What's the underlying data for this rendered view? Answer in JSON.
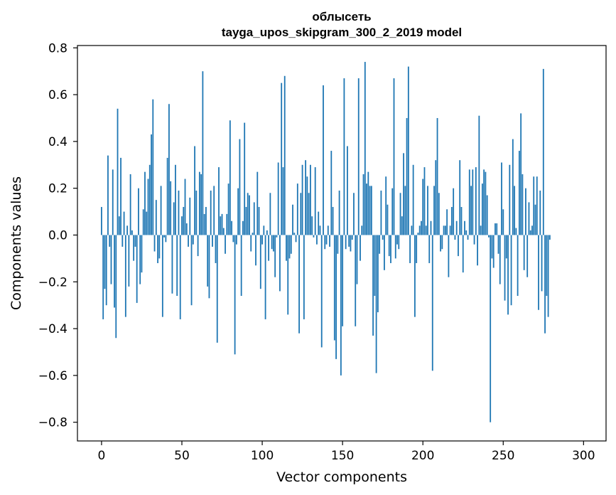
{
  "chart_data": {
    "type": "bar",
    "title": "облысеть",
    "subtitle": "tayga_upos_skipgram_300_2_2019 model",
    "xlabel": "Vector components",
    "ylabel": "Components values",
    "xlim": [
      -15,
      314
    ],
    "ylim": [
      -0.88,
      0.81
    ],
    "xticks": [
      0,
      50,
      100,
      150,
      200,
      250,
      300
    ],
    "yticks": [
      -0.8,
      -0.6,
      -0.4,
      -0.2,
      0.0,
      0.2,
      0.4,
      0.6,
      0.8
    ],
    "xtick_labels": [
      "0",
      "50",
      "100",
      "150",
      "200",
      "250",
      "300"
    ],
    "ytick_labels": [
      "−0.8",
      "−0.6",
      "−0.4",
      "−0.2",
      "0.0",
      "0.2",
      "0.4",
      "0.6",
      "0.8"
    ],
    "bar_color": "#1f77b4",
    "grid": false,
    "values": [
      0.12,
      -0.36,
      -0.23,
      -0.3,
      0.34,
      -0.05,
      -0.21,
      0.28,
      -0.31,
      -0.44,
      0.54,
      0.08,
      0.33,
      -0.05,
      0.1,
      -0.35,
      0.04,
      -0.22,
      0.26,
      0.02,
      -0.11,
      -0.05,
      -0.29,
      0.2,
      -0.21,
      -0.16,
      0.11,
      0.27,
      0.1,
      0.24,
      0.3,
      0.43,
      0.58,
      -0.07,
      0.15,
      -0.12,
      -0.1,
      0.21,
      -0.35,
      -0.01,
      -0.03,
      0.33,
      0.56,
      0.23,
      -0.25,
      0.14,
      0.3,
      -0.26,
      0.19,
      -0.36,
      0.08,
      0.12,
      0.24,
      0.05,
      -0.05,
      0.16,
      -0.3,
      -0.04,
      0.38,
      0.19,
      -0.09,
      0.27,
      0.26,
      0.7,
      0.09,
      0.12,
      -0.22,
      -0.27,
      0.19,
      -0.05,
      0.21,
      -0.12,
      -0.46,
      0.29,
      0.08,
      0.09,
      0.03,
      -0.08,
      0.09,
      0.22,
      0.49,
      0.06,
      -0.03,
      -0.51,
      -0.04,
      0.2,
      0.41,
      -0.26,
      0.06,
      0.48,
      0.12,
      0.18,
      0.17,
      -0.07,
      0.01,
      0.14,
      -0.13,
      0.27,
      0.12,
      -0.23,
      -0.04,
      0.04,
      -0.36,
      0.02,
      -0.11,
      0.18,
      -0.06,
      -0.07,
      -0.18,
      -0.01,
      0.31,
      -0.24,
      0.65,
      0.29,
      0.68,
      -0.11,
      -0.34,
      -0.1,
      -0.08,
      0.13,
      0.01,
      -0.03,
      0.22,
      -0.42,
      0.18,
      0.3,
      -0.36,
      0.32,
      0.25,
      0.18,
      0.3,
      0.08,
      -0.01,
      0.29,
      -0.04,
      0.1,
      0.04,
      -0.48,
      0.64,
      -0.06,
      -0.04,
      0.04,
      -0.05,
      0.36,
      0.12,
      -0.45,
      -0.53,
      -0.08,
      0.19,
      -0.6,
      -0.39,
      0.67,
      -0.06,
      0.38,
      -0.05,
      -0.07,
      -0.02,
      0.18,
      -0.39,
      -0.21,
      0.67,
      -0.11,
      0.04,
      0.26,
      0.74,
      0.22,
      0.27,
      0.21,
      0.21,
      -0.43,
      -0.26,
      -0.59,
      -0.33,
      -0.08,
      0.19,
      -0.02,
      -0.15,
      0.25,
      0.13,
      -0.09,
      -0.12,
      0.2,
      0.67,
      -0.1,
      -0.04,
      -0.06,
      0.18,
      0.08,
      0.35,
      0.21,
      0.5,
      0.72,
      -0.12,
      0.04,
      0.3,
      -0.35,
      -0.12,
      0.01,
      0.04,
      0.06,
      0.24,
      0.29,
      0.04,
      0.21,
      -0.12,
      0.06,
      -0.58,
      0.21,
      0.32,
      0.5,
      0.18,
      -0.07,
      -0.06,
      0.04,
      0.04,
      0.11,
      -0.18,
      0.04,
      0.12,
      0.2,
      -0.02,
      0.06,
      -0.09,
      0.32,
      0.12,
      -0.16,
      0.06,
      0.02,
      -0.02,
      0.28,
      0.21,
      0.28,
      -0.04,
      0.29,
      -0.13,
      0.51,
      0.04,
      0.22,
      0.28,
      0.27,
      0.17,
      -0.01,
      -0.8,
      -0.1,
      -0.14,
      0.05,
      0.05,
      -0.08,
      -0.21,
      0.31,
      0.11,
      -0.28,
      -0.1,
      -0.34,
      0.3,
      -0.3,
      0.41,
      0.21,
      0.03,
      -0.26,
      0.36,
      0.52,
      0.26,
      -0.15,
      0.2,
      -0.18,
      0.14,
      0.02,
      0.04,
      0.25,
      0.13,
      0.25,
      -0.32,
      0.19,
      -0.24,
      0.71,
      -0.42,
      -0.26,
      -0.35,
      -0.02
    ]
  }
}
